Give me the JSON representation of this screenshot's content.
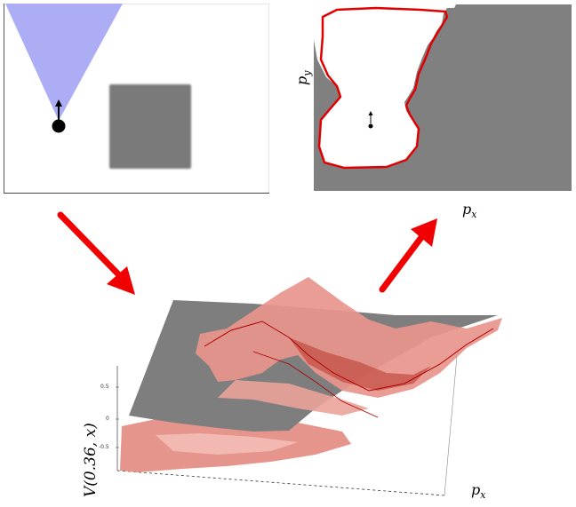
{
  "labels": {
    "py": "p",
    "py_sub": "y",
    "px_top": "p",
    "px_top_sub": "x",
    "px_bottom": "p",
    "px_bottom_sub": "x",
    "value_axis": "V(0.36, x)"
  },
  "ticks": [
    "0.5",
    "0",
    "-0.5"
  ],
  "colors": {
    "sensor_cone": "#a9a9f6",
    "obstacle": "#7a7a7a",
    "occluded_region": "#808080",
    "reachable_boundary": "#e00000",
    "value_surface": "#e8958c",
    "arrow": "#f00000"
  }
}
